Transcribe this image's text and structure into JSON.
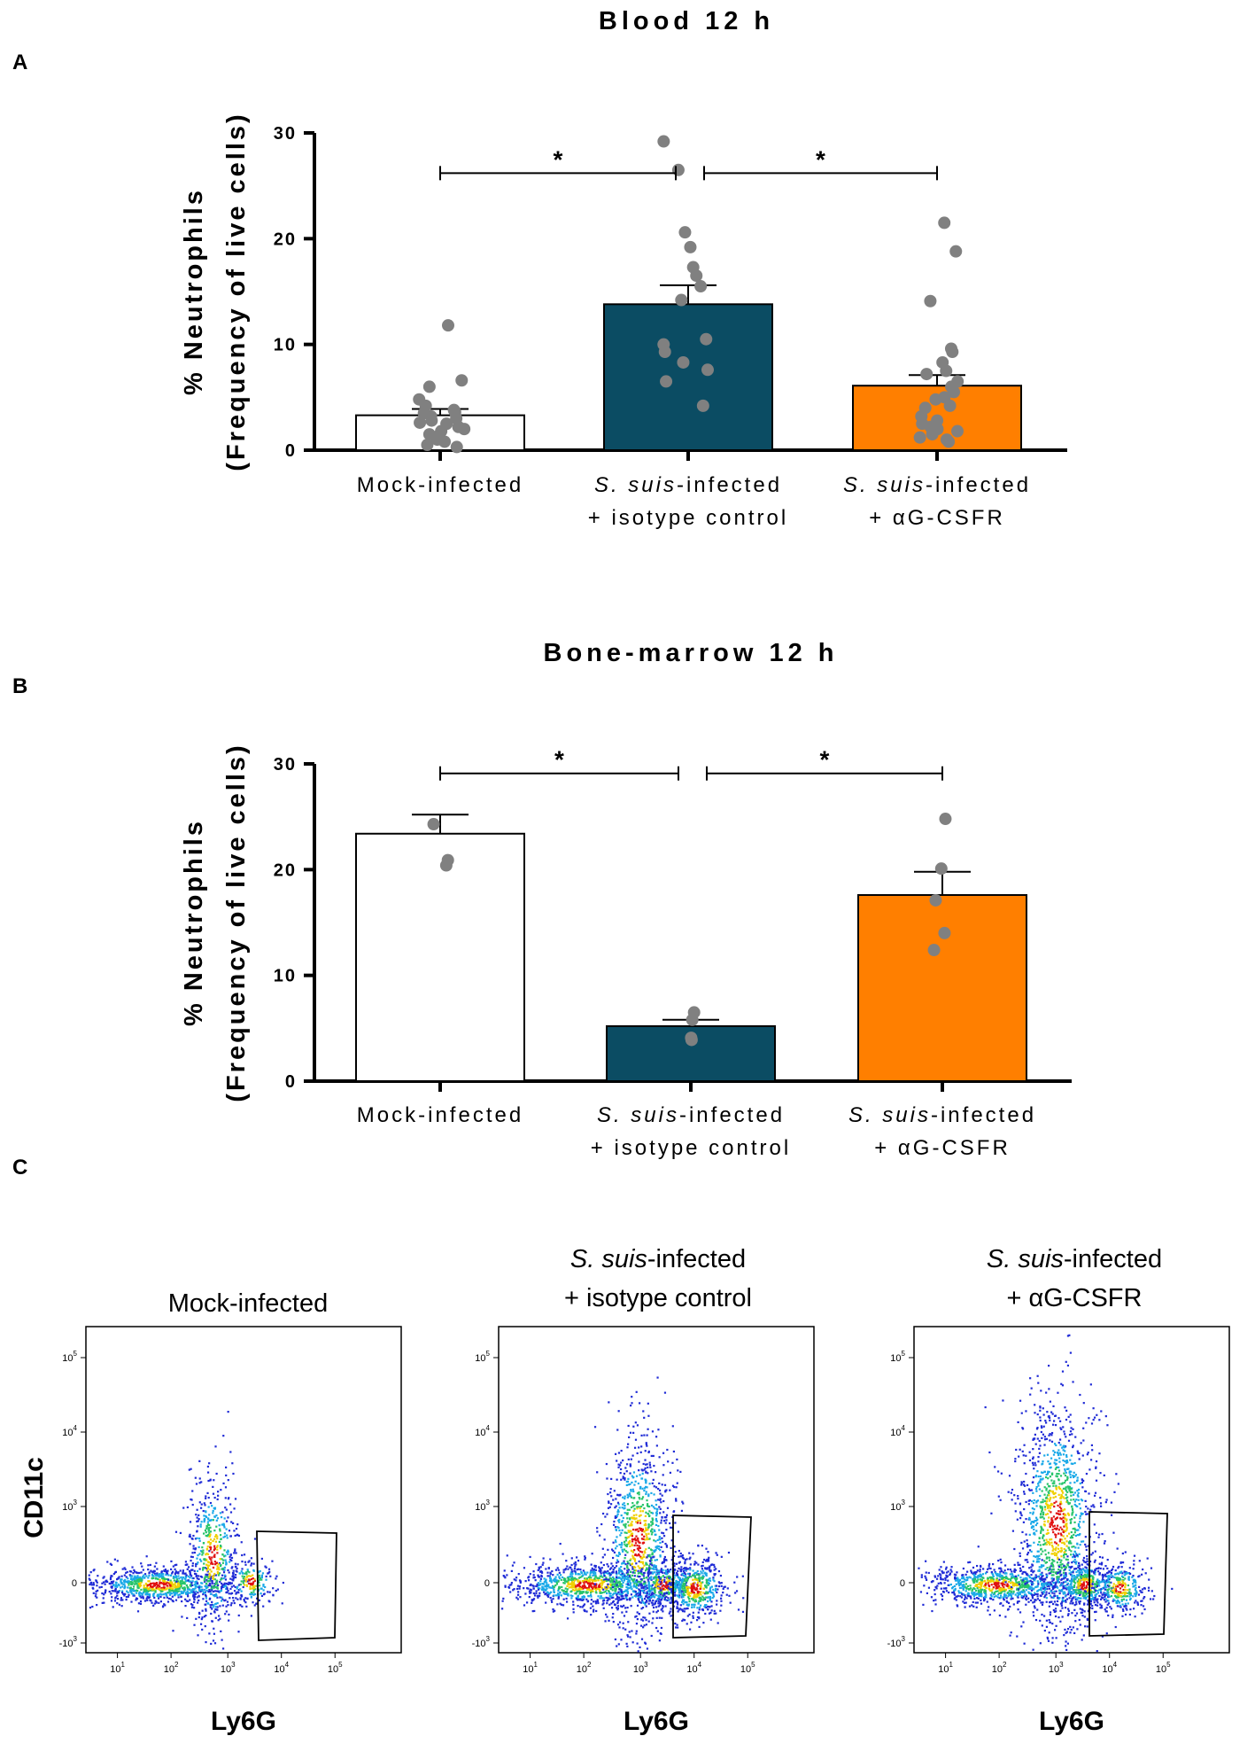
{
  "panel_labels": {
    "a": "A",
    "b": "B",
    "c": "C"
  },
  "chart_data": [
    {
      "type": "bar",
      "panel": "A",
      "title": "Blood 12 h",
      "ylabel_line1": "% Neutrophils",
      "ylabel_line2": "(Frequency of live cells)",
      "ylim": [
        0,
        30
      ],
      "yticks": [
        0,
        10,
        20,
        30
      ],
      "categories": [
        {
          "line1_italic": "",
          "line1": "Mock-infected",
          "line2": ""
        },
        {
          "line1_italic": "S. suis",
          "line1": "-infected",
          "line2": "+ isotype control"
        },
        {
          "line1_italic": "S. suis",
          "line1": "-infected",
          "line2": "+ αG-CSFR"
        }
      ],
      "values": [
        3.3,
        13.8,
        6.1
      ],
      "sem": [
        0.6,
        1.8,
        1.0
      ],
      "colors": [
        "#ffffff",
        "#0b4c63",
        "#ff7f00"
      ],
      "points": [
        [
          11.8,
          6.6,
          6.0,
          4.8,
          4.2,
          3.8,
          3.5,
          3.2,
          3.0,
          2.8,
          2.5,
          2.2,
          2.0,
          1.8,
          1.5,
          1.3,
          1.0,
          0.8,
          0.5,
          0.3,
          2.6,
          3.6
        ],
        [
          29.2,
          26.5,
          20.6,
          19.2,
          17.3,
          16.5,
          15.5,
          14.2,
          10.5,
          10.0,
          9.3,
          8.3,
          7.6,
          6.5,
          4.2
        ],
        [
          21.5,
          18.8,
          14.1,
          9.6,
          9.3,
          8.3,
          7.5,
          7.2,
          6.5,
          6.0,
          5.5,
          5.0,
          4.8,
          4.2,
          4.0,
          3.2,
          2.8,
          2.5,
          2.2,
          2.0,
          1.8,
          1.5,
          1.2,
          1.0,
          0.8
        ]
      ],
      "significance": [
        {
          "from": 0,
          "to": 1,
          "label": "*",
          "y": 26.2
        },
        {
          "from": 1,
          "to": 2,
          "label": "*",
          "y": 26.2
        }
      ]
    },
    {
      "type": "bar",
      "panel": "B",
      "title": "Bone-marrow  12 h",
      "ylabel_line1": "% Neutrophils",
      "ylabel_line2": "(Frequency of live cells)",
      "ylim": [
        0,
        30
      ],
      "yticks": [
        0,
        10,
        20,
        30
      ],
      "categories": [
        {
          "line1_italic": "",
          "line1": "Mock-infected",
          "line2": ""
        },
        {
          "line1_italic": "S. suis",
          "line1": "-infected",
          "line2": "+ isotype control"
        },
        {
          "line1_italic": "S. suis",
          "line1": "-infected",
          "line2": "+ αG-CSFR"
        }
      ],
      "values": [
        23.4,
        5.2,
        17.6
      ],
      "sem": [
        1.8,
        0.6,
        2.2
      ],
      "colors": [
        "#ffffff",
        "#0b4c63",
        "#ff7f00"
      ],
      "points": [
        [
          24.3,
          20.9,
          20.4
        ],
        [
          6.5,
          5.8,
          4.1,
          3.9
        ],
        [
          24.8,
          20.1,
          17.1,
          14.0,
          12.4
        ]
      ],
      "significance": [
        {
          "from": 0,
          "to": 1,
          "label": "*",
          "y": 29.1
        },
        {
          "from": 1,
          "to": 2,
          "label": "*",
          "y": 29.1
        }
      ]
    }
  ],
  "facs": {
    "xlabel": "Ly6G",
    "ylabel": "CD11c",
    "xtick_exponents": [
      "1",
      "2",
      "3",
      "4",
      "5"
    ],
    "ytick_labels": [
      {
        "base": "10",
        "exp": "5"
      },
      {
        "base": "10",
        "exp": "4"
      },
      {
        "base": "10",
        "exp": "3"
      },
      {
        "base": "0",
        "exp": ""
      },
      {
        "base": "-10",
        "exp": "3"
      }
    ],
    "panels": [
      {
        "title_italic": "",
        "title_line1": "Mock-infected",
        "title_line2": ""
      },
      {
        "title_italic": "S. suis",
        "title_line1": "-infected",
        "title_line2": "+ isotype control"
      },
      {
        "title_italic": "S. suis",
        "title_line1": "-infected",
        "title_line2": "+ αG-CSFR"
      }
    ]
  }
}
